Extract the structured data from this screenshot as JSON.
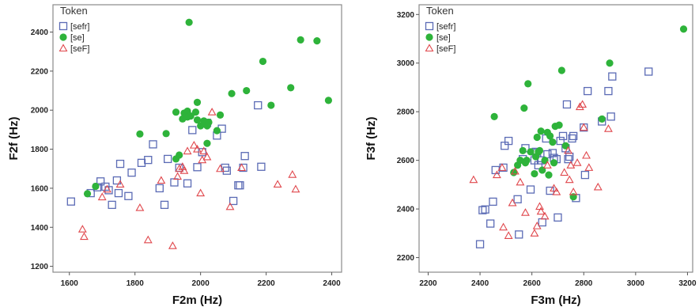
{
  "colors": {
    "sefr": "#5b6bb5",
    "se": "#2eb33a",
    "seF": "#e0474c",
    "frame": "#8a8a8a"
  },
  "chart_data": [
    {
      "type": "scatter",
      "title": "",
      "xlabel": "F2m (Hz)",
      "ylabel": "F2f (Hz)",
      "xlim": [
        1550,
        2430
      ],
      "ylim": [
        1170,
        2540
      ],
      "xticks": [
        "1600",
        "1800",
        "2000",
        "2200",
        "2400"
      ],
      "yticks": [
        "1200",
        "1400",
        "1600",
        "1800",
        "2000",
        "2200",
        "2400"
      ],
      "legend": {
        "title": "Token",
        "position": "top-left",
        "entries": [
          "[sefr]",
          "[se]",
          "[seF]"
        ]
      },
      "series": [
        {
          "name": "[sefr]",
          "marker": "square",
          "points": [
            [
              1605,
              1532
            ],
            [
              1665,
              1575
            ],
            [
              1685,
              1605
            ],
            [
              1695,
              1635
            ],
            [
              1710,
              1608
            ],
            [
              1720,
              1590
            ],
            [
              1730,
              1515
            ],
            [
              1745,
              1640
            ],
            [
              1750,
              1575
            ],
            [
              1755,
              1725
            ],
            [
              1780,
              1560
            ],
            [
              1790,
              1680
            ],
            [
              1820,
              1730
            ],
            [
              1840,
              1745
            ],
            [
              1855,
              1825
            ],
            [
              1875,
              1600
            ],
            [
              1890,
              1515
            ],
            [
              1900,
              1750
            ],
            [
              1920,
              1630
            ],
            [
              1935,
              1705
            ],
            [
              1960,
              1625
            ],
            [
              1975,
              1898
            ],
            [
              1990,
              1708
            ],
            [
              2005,
              1785
            ],
            [
              2020,
              1935
            ],
            [
              2050,
              1870
            ],
            [
              2065,
              1905
            ],
            [
              2075,
              1705
            ],
            [
              2080,
              1690
            ],
            [
              2100,
              1535
            ],
            [
              2115,
              1615
            ],
            [
              2120,
              1615
            ],
            [
              2130,
              1705
            ],
            [
              2135,
              1765
            ],
            [
              2175,
              2025
            ],
            [
              2185,
              1710
            ]
          ]
        },
        {
          "name": "[se]",
          "marker": "circle",
          "points": [
            [
              1655,
              1572
            ],
            [
              1680,
              1610
            ],
            [
              1815,
              1878
            ],
            [
              1895,
              1880
            ],
            [
              1925,
              1750
            ],
            [
              1925,
              1990
            ],
            [
              1935,
              1770
            ],
            [
              1945,
              1955
            ],
            [
              1950,
              1985
            ],
            [
              1960,
              1995
            ],
            [
              1960,
              1965
            ],
            [
              1965,
              2450
            ],
            [
              1970,
              1970
            ],
            [
              1985,
              1990
            ],
            [
              1990,
              2040
            ],
            [
              1990,
              1950
            ],
            [
              2000,
              1920
            ],
            [
              2010,
              1945
            ],
            [
              2020,
              1920
            ],
            [
              2020,
              1830
            ],
            [
              2025,
              1938
            ],
            [
              2050,
              1895
            ],
            [
              2060,
              1975
            ],
            [
              2095,
              2085
            ],
            [
              2140,
              2100
            ],
            [
              2190,
              2250
            ],
            [
              2215,
              2025
            ],
            [
              2275,
              2115
            ],
            [
              2305,
              2360
            ],
            [
              2355,
              2355
            ],
            [
              2390,
              2050
            ]
          ]
        },
        {
          "name": "[seF]",
          "marker": "triangle",
          "points": [
            [
              1640,
              1390
            ],
            [
              1645,
              1352
            ],
            [
              1700,
              1555
            ],
            [
              1715,
              1595
            ],
            [
              1755,
              1620
            ],
            [
              1815,
              1500
            ],
            [
              1840,
              1335
            ],
            [
              1880,
              1640
            ],
            [
              1915,
              1305
            ],
            [
              1930,
              1660
            ],
            [
              1935,
              1700
            ],
            [
              1945,
              1710
            ],
            [
              1950,
              1690
            ],
            [
              1960,
              1790
            ],
            [
              1980,
              1820
            ],
            [
              1990,
              1800
            ],
            [
              2000,
              1575
            ],
            [
              2005,
              1745
            ],
            [
              2010,
              1790
            ],
            [
              2020,
              1760
            ],
            [
              2035,
              1990
            ],
            [
              2060,
              1700
            ],
            [
              2090,
              1505
            ],
            [
              2125,
              1705
            ],
            [
              2235,
              1620
            ],
            [
              2280,
              1670
            ],
            [
              2290,
              1595
            ]
          ]
        }
      ]
    },
    {
      "type": "scatter",
      "title": "",
      "xlabel": "F3m (Hz)",
      "ylabel": "F3f (Hz)",
      "xlim": [
        2165,
        3220
      ],
      "ylim": [
        2140,
        3240
      ],
      "xticks": [
        "2200",
        "2400",
        "2600",
        "2800",
        "3000",
        "3200"
      ],
      "yticks": [
        "2200",
        "2400",
        "2600",
        "2800",
        "3000",
        "3200"
      ],
      "legend": {
        "title": "Token",
        "position": "top-left",
        "entries": [
          "[sefr]",
          "[se]",
          "[seF]"
        ]
      },
      "series": [
        {
          "name": "[sefr]",
          "marker": "square",
          "points": [
            [
              2400,
              2255
            ],
            [
              2410,
              2395
            ],
            [
              2420,
              2398
            ],
            [
              2440,
              2340
            ],
            [
              2450,
              2430
            ],
            [
              2460,
              2560
            ],
            [
              2490,
              2570
            ],
            [
              2495,
              2660
            ],
            [
              2510,
              2680
            ],
            [
              2545,
              2440
            ],
            [
              2550,
              2295
            ],
            [
              2565,
              2605
            ],
            [
              2575,
              2650
            ],
            [
              2595,
              2480
            ],
            [
              2610,
              2600
            ],
            [
              2615,
              2635
            ],
            [
              2620,
              2630
            ],
            [
              2625,
              2580
            ],
            [
              2635,
              2600
            ],
            [
              2640,
              2345
            ],
            [
              2655,
              2690
            ],
            [
              2660,
              2625
            ],
            [
              2670,
              2475
            ],
            [
              2680,
              2630
            ],
            [
              2685,
              2610
            ],
            [
              2695,
              2605
            ],
            [
              2700,
              2365
            ],
            [
              2710,
              2680
            ],
            [
              2720,
              2700
            ],
            [
              2730,
              2650
            ],
            [
              2735,
              2830
            ],
            [
              2740,
              2605
            ],
            [
              2745,
              2615
            ],
            [
              2755,
              2690
            ],
            [
              2760,
              2700
            ],
            [
              2770,
              2445
            ],
            [
              2800,
              2735
            ],
            [
              2805,
              2540
            ],
            [
              2815,
              2885
            ],
            [
              2870,
              2760
            ],
            [
              2895,
              2885
            ],
            [
              2905,
              2780
            ],
            [
              2910,
              2945
            ],
            [
              3050,
              2965
            ]
          ]
        },
        {
          "name": "[se]",
          "marker": "circle",
          "points": [
            [
              2455,
              2780
            ],
            [
              2530,
              2550
            ],
            [
              2545,
              2580
            ],
            [
              2555,
              2600
            ],
            [
              2565,
              2640
            ],
            [
              2570,
              2815
            ],
            [
              2575,
              2590
            ],
            [
              2580,
              2600
            ],
            [
              2585,
              2915
            ],
            [
              2595,
              2635
            ],
            [
              2610,
              2545
            ],
            [
              2615,
              2615
            ],
            [
              2620,
              2695
            ],
            [
              2625,
              2635
            ],
            [
              2630,
              2640
            ],
            [
              2635,
              2720
            ],
            [
              2640,
              2560
            ],
            [
              2650,
              2600
            ],
            [
              2660,
              2715
            ],
            [
              2665,
              2540
            ],
            [
              2670,
              2700
            ],
            [
              2680,
              2675
            ],
            [
              2685,
              2590
            ],
            [
              2690,
              2740
            ],
            [
              2705,
              2745
            ],
            [
              2715,
              2970
            ],
            [
              2730,
              2660
            ],
            [
              2760,
              2450
            ],
            [
              2870,
              2770
            ],
            [
              2900,
              3000
            ],
            [
              3185,
              3140
            ]
          ]
        },
        {
          "name": "[seF]",
          "marker": "triangle",
          "points": [
            [
              2375,
              2520
            ],
            [
              2465,
              2540
            ],
            [
              2485,
              2570
            ],
            [
              2490,
              2325
            ],
            [
              2510,
              2290
            ],
            [
              2525,
              2425
            ],
            [
              2535,
              2555
            ],
            [
              2555,
              2510
            ],
            [
              2575,
              2385
            ],
            [
              2610,
              2300
            ],
            [
              2620,
              2330
            ],
            [
              2630,
              2410
            ],
            [
              2635,
              2390
            ],
            [
              2650,
              2370
            ],
            [
              2660,
              2580
            ],
            [
              2685,
              2485
            ],
            [
              2695,
              2470
            ],
            [
              2725,
              2550
            ],
            [
              2740,
              2640
            ],
            [
              2745,
              2520
            ],
            [
              2750,
              2580
            ],
            [
              2760,
              2470
            ],
            [
              2775,
              2590
            ],
            [
              2785,
              2820
            ],
            [
              2795,
              2830
            ],
            [
              2800,
              2735
            ],
            [
              2810,
              2620
            ],
            [
              2820,
              2570
            ],
            [
              2855,
              2490
            ],
            [
              2895,
              2730
            ]
          ]
        }
      ]
    }
  ]
}
